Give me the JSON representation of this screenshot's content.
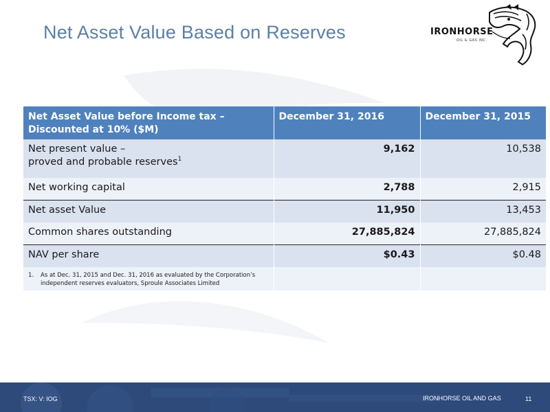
{
  "slide": {
    "title": "Net Asset Value Based on Reserves",
    "page_number": "11"
  },
  "logo": {
    "wordmark": "IRONHORSE",
    "tagline": "OIL & GAS INC."
  },
  "table": {
    "headers": [
      "Net Asset Value before Income tax –\nDiscounted at 10% ($M)",
      "December 31, 2016",
      "December 31, 2015"
    ],
    "rows": [
      {
        "label_line1": "Net present value –",
        "label_line2": "proved and probable reserves",
        "superscript": "1",
        "v2016": "9,162",
        "v2015": "10,538"
      },
      {
        "label": "Net working capital",
        "v2016": "2,788",
        "v2015": "2,915"
      },
      {
        "label": "Net asset Value",
        "v2016": "11,950",
        "v2015": "13,453"
      },
      {
        "label": "Common shares outstanding",
        "v2016": "27,885,824",
        "v2015": "27,885,824"
      },
      {
        "label": "NAV per share",
        "v2016": "$0.43",
        "v2015": "$0.48"
      }
    ],
    "footnote": {
      "number": "1.",
      "text": "As at Dec. 31, 2015 and Dec. 31, 2016 as evaluated by the Corporation’s independent reserves evaluators, Sproule Associates Limited"
    }
  },
  "footer": {
    "ticker": "TSX: V: IOG",
    "company": "IRONHORSE OIL AND GAS"
  },
  "colors": {
    "title": "#5b7fa6",
    "header_bg": "#4f81bd",
    "row_dark": "#dae1ef",
    "row_light": "#edf1f8",
    "footer_bg": "#2d4a7a"
  }
}
